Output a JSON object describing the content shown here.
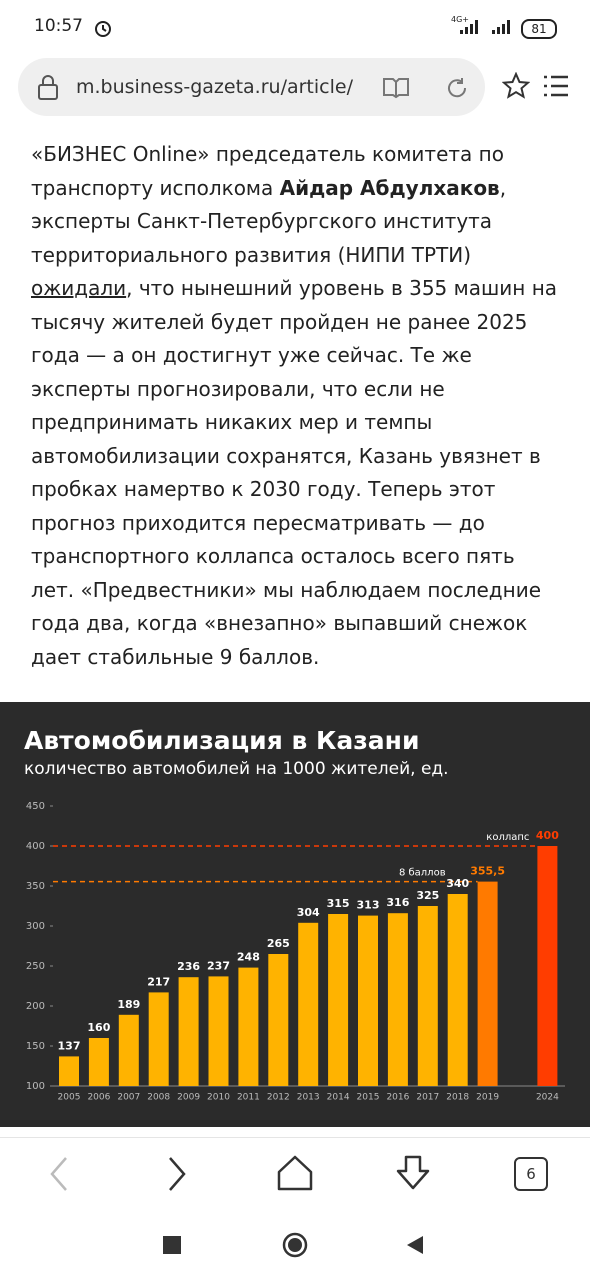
{
  "status_bar": {
    "time": "10:57",
    "network": "4G+",
    "battery": "81"
  },
  "browser": {
    "url": "m.business-gazeta.ru/article/",
    "tab_count": "6"
  },
  "article": {
    "segments": [
      {
        "text": "«БИЗНЕС Online» председатель комитета по транспорту исполкома ",
        "style": "normal"
      },
      {
        "text": "Айдар Абдулхаков",
        "style": "bold"
      },
      {
        "text": ", эксперты Санкт-Петербургского института территориального развития (НИПИ ТРТИ) ",
        "style": "normal"
      },
      {
        "text": "ожидали",
        "style": "link"
      },
      {
        "text": ", что нынешний уровень в 355 машин на тысячу жителей будет пройден не ранее 2025 года — а он достигнут уже сейчас. Те же эксперты прогнозировали, что если не предпринимать никаких мер и темпы автомобилизации сохранятся, Казань увязнет в пробках намертво к 2030 году. Теперь этот прогноз приходится пересматривать — до транспортного коллапса осталось всего пять лет. «Предвестники» мы наблюдаем последние года два, когда «внезапно» выпавший снежок дает стабильные 9 баллов.",
        "style": "normal"
      }
    ]
  },
  "chart_data": {
    "type": "bar",
    "title": "Автомобилизация в Казани",
    "subtitle": "количество автомобилей на 1000 жителей, ед.",
    "categories": [
      "2005",
      "2006",
      "2007",
      "2008",
      "2009",
      "2010",
      "2011",
      "2012",
      "2013",
      "2014",
      "2015",
      "2016",
      "2017",
      "2018",
      "2019",
      null,
      "2024"
    ],
    "values": [
      137,
      160,
      189,
      217,
      236,
      237,
      248,
      265,
      304,
      315,
      313,
      316,
      325,
      340,
      355.5,
      null,
      400
    ],
    "value_labels": [
      "137",
      "160",
      "189",
      "217",
      "236",
      "237",
      "248",
      "265",
      "304",
      "315",
      "313",
      "316",
      "325",
      "340",
      "355,5",
      null,
      "400"
    ],
    "colors": [
      "#ffb300",
      "#ffb300",
      "#ffb300",
      "#ffb300",
      "#ffb300",
      "#ffb300",
      "#ffb300",
      "#ffb300",
      "#ffb300",
      "#ffb300",
      "#ffb300",
      "#ffb300",
      "#ffb300",
      "#ffb300",
      "#ff7a00",
      null,
      "#ff3d00"
    ],
    "ylim": [
      100,
      450
    ],
    "yticks": [
      100,
      150,
      200,
      250,
      300,
      350,
      400,
      450
    ],
    "reference_lines": [
      {
        "value": 400,
        "label": "коллапс",
        "color": "#ff3d00"
      },
      {
        "value": 355.5,
        "label": "8 баллов",
        "color": "#ff7a00"
      }
    ]
  }
}
